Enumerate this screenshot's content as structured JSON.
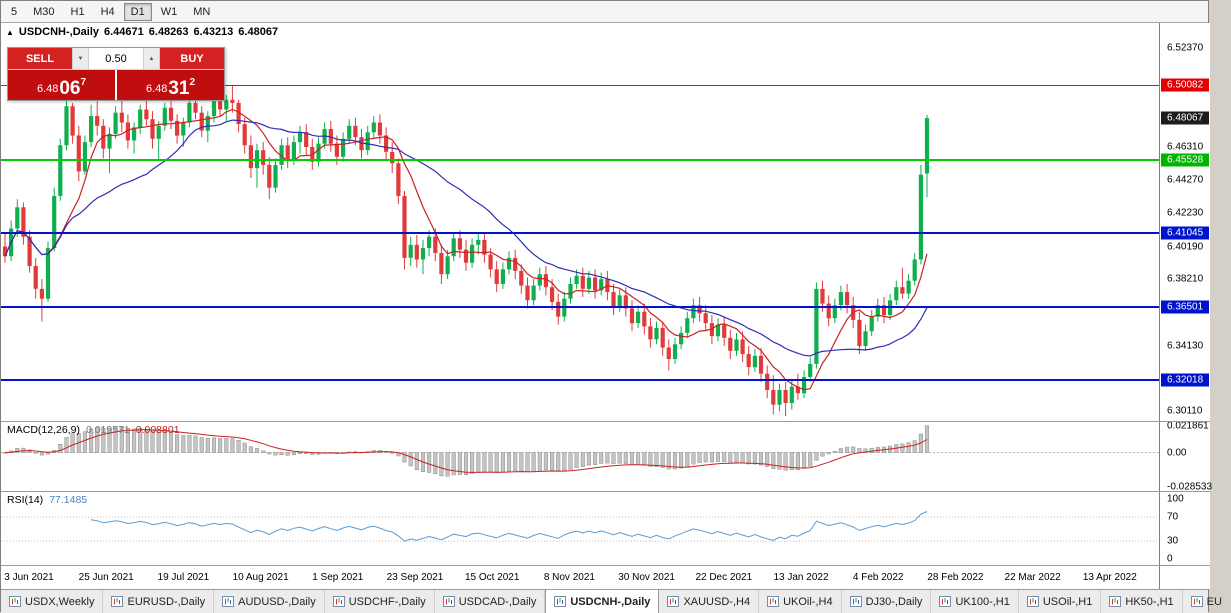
{
  "toolbar": {
    "periods": [
      {
        "label": "5",
        "active": false
      },
      {
        "label": "M30",
        "active": false
      },
      {
        "label": "H1",
        "active": false
      },
      {
        "label": "H4",
        "active": false
      },
      {
        "label": "D1",
        "active": true
      },
      {
        "label": "W1",
        "active": false
      },
      {
        "label": "MN",
        "active": false
      }
    ]
  },
  "chart_header": {
    "collapse_icon": "▲",
    "symbol": "USDCNH-,Daily",
    "open": "6.44671",
    "high": "6.48263",
    "low": "6.43213",
    "close": "6.48067"
  },
  "one_click": {
    "sell_label": "SELL",
    "buy_label": "BUY",
    "volume": "0.50",
    "volume_down_icon": "▼",
    "volume_up_icon": "▲",
    "sell_price": {
      "prefix": "6.48",
      "big": "06",
      "sup": "7"
    },
    "buy_price": {
      "prefix": "6.48",
      "big": "31",
      "sup": "2"
    }
  },
  "price_axis": {
    "ticks": [
      {
        "price": 6.5237,
        "label": "6.52370"
      },
      {
        "price": 6.4631,
        "label": "6.46310"
      },
      {
        "price": 6.4427,
        "label": "6.44270"
      },
      {
        "price": 6.4223,
        "label": "6.42230"
      },
      {
        "price": 6.4019,
        "label": "6.40190"
      },
      {
        "price": 6.3821,
        "label": "6.38210"
      },
      {
        "price": 6.3413,
        "label": "6.34130"
      },
      {
        "price": 6.3011,
        "label": "6.30110"
      }
    ],
    "badges": [
      {
        "price": 6.50082,
        "label": "6.50082",
        "bg": "#e30000"
      },
      {
        "price": 6.48067,
        "label": "6.48067",
        "bg": "#1c1c1c"
      },
      {
        "price": 6.45528,
        "label": "6.45528",
        "bg": "#00b400"
      },
      {
        "price": 6.41045,
        "label": "6.41045",
        "bg": "#0013cc"
      },
      {
        "price": 6.36501,
        "label": "6.36501",
        "bg": "#0013cc"
      },
      {
        "price": 6.32018,
        "label": "6.32018",
        "bg": "#0013cc"
      }
    ]
  },
  "macd_panel": {
    "title": "MACD(12,26,9)",
    "value_main": "0.019571",
    "value_signal": "0.008801",
    "axis": [
      {
        "value": 0.021861,
        "label": "0.021861"
      },
      {
        "value": 0,
        "label": "0.00"
      },
      {
        "value": -0.028533,
        "label": "-0.028533"
      }
    ]
  },
  "rsi_panel": {
    "title": "RSI(14)",
    "value": "77.1485",
    "axis": [
      {
        "value": 100,
        "label": "100"
      },
      {
        "value": 70,
        "label": "70"
      },
      {
        "value": 30,
        "label": "30"
      },
      {
        "value": 0,
        "label": "0"
      }
    ]
  },
  "tabbar": {
    "tabs": [
      {
        "label": "USDX,Weekly",
        "active": false
      },
      {
        "label": "EURUSD-,Daily",
        "active": false
      },
      {
        "label": "AUDUSD-,Daily",
        "active": false
      },
      {
        "label": "USDCHF-,Daily",
        "active": false
      },
      {
        "label": "USDCAD-,Daily",
        "active": false
      },
      {
        "label": "USDCNH-,Daily",
        "active": true
      },
      {
        "label": "XAUUSD-,H4",
        "active": false
      },
      {
        "label": "UKOil-,H4",
        "active": false
      },
      {
        "label": "DJ30-,Daily",
        "active": false
      },
      {
        "label": "UK100-,H1",
        "active": false
      },
      {
        "label": "USOil-,H1",
        "active": false
      },
      {
        "label": "HK50-,H1",
        "active": false
      },
      {
        "label": "EU",
        "active": false
      }
    ]
  },
  "colors": {
    "bull": "#0faf4e",
    "bear": "#e23a3a",
    "ma_fast": "#cc2020",
    "ma_slow": "#2d2db8",
    "macd_hist_fill": "#c4c4c4",
    "macd_hist_stroke": "#8e8e8e",
    "macd_signal": "#cc2020",
    "rsi_line": "#5a9bd5",
    "level_dotted": "#b8b8b8"
  },
  "chart_data": {
    "type": "candlestick",
    "title": "USDCNH-,Daily",
    "last_ohlc": {
      "open": 6.44671,
      "high": 6.48263,
      "low": 6.43213,
      "close": 6.48067
    },
    "y_range": [
      6.295,
      6.539
    ],
    "x_labels": [
      "3 Jun 2021",
      "25 Jun 2021",
      "19 Jul 2021",
      "10 Aug 2021",
      "1 Sep 2021",
      "23 Sep 2021",
      "15 Oct 2021",
      "8 Nov 2021",
      "30 Nov 2021",
      "22 Dec 2021",
      "13 Jan 2022",
      "4 Feb 2022",
      "28 Feb 2022",
      "22 Mar 2022",
      "13 Apr 2022"
    ],
    "hlines": [
      {
        "price": 6.50082,
        "color": "#ff0000",
        "width": 1
      },
      {
        "price": 6.45528,
        "color": "#00cc00",
        "width": 2
      },
      {
        "price": 6.41045,
        "color": "#0013cc",
        "width": 2
      },
      {
        "price": 6.36501,
        "color": "#0013cc",
        "width": 2
      },
      {
        "price": 6.32018,
        "color": "#0013cc",
        "width": 2
      }
    ],
    "overlays": [
      {
        "name": "ma-fast-line",
        "type": "sma",
        "period": 8,
        "color": "#cc2020"
      },
      {
        "name": "ma-slow-line",
        "type": "sma",
        "period": 24,
        "color": "#2d2db8"
      }
    ],
    "indicators": [
      {
        "name": "MACD",
        "params": [
          12,
          26,
          9
        ],
        "last_values": [
          0.019571,
          0.008801
        ],
        "axis_range": [
          -0.028533,
          0.021861
        ]
      },
      {
        "name": "RSI",
        "params": [
          14
        ],
        "last_value": 77.1485,
        "levels": [
          70,
          30
        ]
      }
    ],
    "candles": [
      [
        6.402,
        6.41,
        6.392,
        6.396
      ],
      [
        6.396,
        6.418,
        6.393,
        6.413
      ],
      [
        6.413,
        6.431,
        6.408,
        6.426
      ],
      [
        6.426,
        6.429,
        6.403,
        6.408
      ],
      [
        6.408,
        6.412,
        6.386,
        6.39
      ],
      [
        6.39,
        6.395,
        6.37,
        6.376
      ],
      [
        6.376,
        6.382,
        6.356,
        6.37
      ],
      [
        6.37,
        6.405,
        6.368,
        6.401
      ],
      [
        6.401,
        6.438,
        6.399,
        6.433
      ],
      [
        6.433,
        6.468,
        6.43,
        6.464
      ],
      [
        6.464,
        6.493,
        6.461,
        6.488
      ],
      [
        6.488,
        6.49,
        6.465,
        6.47
      ],
      [
        6.47,
        6.476,
        6.442,
        6.448
      ],
      [
        6.448,
        6.47,
        6.446,
        6.466
      ],
      [
        6.466,
        6.489,
        6.463,
        6.482
      ],
      [
        6.482,
        6.491,
        6.47,
        6.476
      ],
      [
        6.476,
        6.48,
        6.456,
        6.462
      ],
      [
        6.462,
        6.475,
        6.447,
        6.471
      ],
      [
        6.471,
        6.488,
        6.468,
        6.484
      ],
      [
        6.484,
        6.492,
        6.472,
        6.478
      ],
      [
        6.478,
        6.483,
        6.462,
        6.467
      ],
      [
        6.467,
        6.478,
        6.459,
        6.475
      ],
      [
        6.475,
        6.489,
        6.471,
        6.486
      ],
      [
        6.486,
        6.496,
        6.476,
        6.48
      ],
      [
        6.48,
        6.485,
        6.462,
        6.468
      ],
      [
        6.468,
        6.479,
        6.455,
        6.476
      ],
      [
        6.476,
        6.49,
        6.473,
        6.487
      ],
      [
        6.487,
        6.492,
        6.474,
        6.479
      ],
      [
        6.479,
        6.483,
        6.465,
        6.47
      ],
      [
        6.47,
        6.481,
        6.463,
        6.478
      ],
      [
        6.478,
        6.493,
        6.475,
        6.49
      ],
      [
        6.49,
        6.499,
        6.48,
        6.484
      ],
      [
        6.484,
        6.488,
        6.469,
        6.473
      ],
      [
        6.473,
        6.485,
        6.466,
        6.482
      ],
      [
        6.482,
        6.494,
        6.478,
        6.491
      ],
      [
        6.491,
        6.497,
        6.482,
        6.486
      ],
      [
        6.486,
        6.495,
        6.479,
        6.492
      ],
      [
        6.492,
        6.5005,
        6.484,
        6.49
      ],
      [
        6.49,
        6.492,
        6.472,
        6.477
      ],
      [
        6.477,
        6.481,
        6.459,
        6.464
      ],
      [
        6.464,
        6.47,
        6.444,
        6.45
      ],
      [
        6.45,
        6.465,
        6.438,
        6.461
      ],
      [
        6.461,
        6.466,
        6.446,
        6.452
      ],
      [
        6.452,
        6.457,
        6.431,
        6.438
      ],
      [
        6.438,
        6.456,
        6.435,
        6.452
      ],
      [
        6.452,
        6.468,
        6.449,
        6.464
      ],
      [
        6.464,
        6.469,
        6.45,
        6.455
      ],
      [
        6.455,
        6.47,
        6.452,
        6.466
      ],
      [
        6.466,
        6.476,
        6.459,
        6.472
      ],
      [
        6.472,
        6.477,
        6.458,
        6.463
      ],
      [
        6.463,
        6.468,
        6.449,
        6.454
      ],
      [
        6.454,
        6.469,
        6.451,
        6.465
      ],
      [
        6.465,
        6.478,
        6.462,
        6.474
      ],
      [
        6.474,
        6.479,
        6.46,
        6.465
      ],
      [
        6.465,
        6.47,
        6.452,
        6.457
      ],
      [
        6.457,
        6.472,
        6.454,
        6.468
      ],
      [
        6.468,
        6.48,
        6.465,
        6.476
      ],
      [
        6.476,
        6.481,
        6.464,
        6.469
      ],
      [
        6.469,
        6.474,
        6.456,
        6.461
      ],
      [
        6.461,
        6.476,
        6.458,
        6.472
      ],
      [
        6.472,
        6.482,
        6.468,
        6.478
      ],
      [
        6.478,
        6.483,
        6.465,
        6.47
      ],
      [
        6.47,
        6.475,
        6.455,
        6.46
      ],
      [
        6.46,
        6.466,
        6.447,
        6.453
      ],
      [
        6.453,
        6.456,
        6.428,
        6.433
      ],
      [
        6.433,
        6.436,
        6.388,
        6.395
      ],
      [
        6.395,
        6.408,
        6.39,
        6.403
      ],
      [
        6.403,
        6.409,
        6.389,
        6.394
      ],
      [
        6.394,
        6.406,
        6.385,
        6.401
      ],
      [
        6.401,
        6.412,
        6.396,
        6.408
      ],
      [
        6.408,
        6.413,
        6.393,
        6.398
      ],
      [
        6.398,
        6.403,
        6.379,
        6.385
      ],
      [
        6.385,
        6.4,
        6.382,
        6.396
      ],
      [
        6.396,
        6.411,
        6.393,
        6.407
      ],
      [
        6.407,
        6.412,
        6.395,
        6.4
      ],
      [
        6.4,
        6.406,
        6.387,
        6.392
      ],
      [
        6.392,
        6.407,
        6.389,
        6.403
      ],
      [
        6.403,
        6.411,
        6.397,
        6.406
      ],
      [
        6.406,
        6.41,
        6.392,
        6.397
      ],
      [
        6.397,
        6.401,
        6.383,
        6.388
      ],
      [
        6.388,
        6.393,
        6.374,
        6.379
      ],
      [
        6.379,
        6.392,
        6.376,
        6.388
      ],
      [
        6.388,
        6.399,
        6.385,
        6.395
      ],
      [
        6.395,
        6.4,
        6.382,
        6.387
      ],
      [
        6.387,
        6.391,
        6.373,
        6.378
      ],
      [
        6.378,
        6.383,
        6.364,
        6.369
      ],
      [
        6.369,
        6.382,
        6.366,
        6.378
      ],
      [
        6.378,
        6.389,
        6.375,
        6.385
      ],
      [
        6.385,
        6.39,
        6.372,
        6.377
      ],
      [
        6.377,
        6.382,
        6.363,
        6.368
      ],
      [
        6.368,
        6.373,
        6.354,
        6.359
      ],
      [
        6.359,
        6.374,
        6.356,
        6.37
      ],
      [
        6.37,
        6.383,
        6.367,
        6.379
      ],
      [
        6.379,
        6.388,
        6.376,
        6.384
      ],
      [
        6.384,
        6.389,
        6.371,
        6.376
      ],
      [
        6.376,
        6.387,
        6.373,
        6.383
      ],
      [
        6.383,
        6.388,
        6.37,
        6.375
      ],
      [
        6.375,
        6.386,
        6.372,
        6.382
      ],
      [
        6.382,
        6.387,
        6.369,
        6.374
      ],
      [
        6.374,
        6.379,
        6.36,
        6.365
      ],
      [
        6.365,
        6.376,
        6.362,
        6.372
      ],
      [
        6.372,
        6.377,
        6.359,
        6.364
      ],
      [
        6.364,
        6.369,
        6.35,
        6.355
      ],
      [
        6.355,
        6.366,
        6.352,
        6.362
      ],
      [
        6.362,
        6.367,
        6.348,
        6.353
      ],
      [
        6.353,
        6.358,
        6.34,
        6.345
      ],
      [
        6.345,
        6.356,
        6.342,
        6.352
      ],
      [
        6.352,
        6.355,
        6.335,
        6.34
      ],
      [
        6.34,
        6.345,
        6.326,
        6.333
      ],
      [
        6.333,
        6.346,
        6.33,
        6.342
      ],
      [
        6.342,
        6.353,
        6.339,
        6.349
      ],
      [
        6.349,
        6.362,
        6.346,
        6.358
      ],
      [
        6.358,
        6.37,
        6.355,
        6.366
      ],
      [
        6.366,
        6.371,
        6.356,
        6.361
      ],
      [
        6.361,
        6.366,
        6.35,
        6.355
      ],
      [
        6.355,
        6.36,
        6.342,
        6.347
      ],
      [
        6.347,
        6.358,
        6.344,
        6.354
      ],
      [
        6.354,
        6.359,
        6.341,
        6.346
      ],
      [
        6.346,
        6.351,
        6.333,
        6.338
      ],
      [
        6.338,
        6.349,
        6.335,
        6.345
      ],
      [
        6.345,
        6.35,
        6.331,
        6.336
      ],
      [
        6.336,
        6.341,
        6.323,
        6.328
      ],
      [
        6.328,
        6.339,
        6.325,
        6.335
      ],
      [
        6.335,
        6.34,
        6.319,
        6.324
      ],
      [
        6.324,
        6.329,
        6.309,
        6.314
      ],
      [
        6.314,
        6.323,
        6.299,
        6.305
      ],
      [
        6.305,
        6.318,
        6.301,
        6.314
      ],
      [
        6.314,
        6.319,
        6.298,
        6.306
      ],
      [
        6.306,
        6.32,
        6.302,
        6.316
      ],
      [
        6.316,
        6.324,
        6.308,
        6.312
      ],
      [
        6.312,
        6.326,
        6.309,
        6.322
      ],
      [
        6.322,
        6.334,
        6.319,
        6.33
      ],
      [
        6.33,
        6.38,
        6.327,
        6.376
      ],
      [
        6.376,
        6.381,
        6.362,
        6.367
      ],
      [
        6.367,
        6.372,
        6.353,
        6.358
      ],
      [
        6.358,
        6.37,
        6.355,
        6.366
      ],
      [
        6.366,
        6.378,
        6.363,
        6.374
      ],
      [
        6.374,
        6.379,
        6.361,
        6.366
      ],
      [
        6.366,
        6.371,
        6.352,
        6.357
      ],
      [
        6.357,
        6.362,
        6.336,
        6.341
      ],
      [
        6.341,
        6.354,
        6.338,
        6.35
      ],
      [
        6.35,
        6.363,
        6.347,
        6.359
      ],
      [
        6.359,
        6.37,
        6.356,
        6.366
      ],
      [
        6.366,
        6.371,
        6.355,
        6.36
      ],
      [
        6.36,
        6.373,
        6.357,
        6.369
      ],
      [
        6.369,
        6.381,
        6.366,
        6.377
      ],
      [
        6.377,
        6.389,
        6.37,
        6.373
      ],
      [
        6.373,
        6.385,
        6.37,
        6.381
      ],
      [
        6.381,
        6.398,
        6.378,
        6.394
      ],
      [
        6.394,
        6.452,
        6.391,
        6.446
      ],
      [
        6.44671,
        6.48263,
        6.43213,
        6.48067
      ]
    ]
  }
}
